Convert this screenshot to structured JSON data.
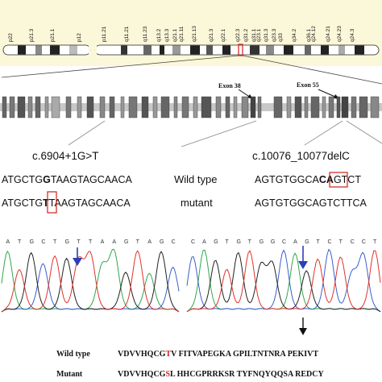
{
  "colors": {
    "ideogram_bg": "#fbf7d9",
    "highlight_box": "#d0201c",
    "arrow_blue": "#2a3fb8",
    "trace_green": "#2ea84a",
    "trace_red": "#e0312a",
    "trace_blue": "#3a5fd0",
    "trace_black": "#222222"
  },
  "ideogram": {
    "bands": [
      "p22",
      "p21.3",
      "p21.1",
      "p12",
      "p11.21",
      "q11.21",
      "q11.23",
      "q13.2",
      "q13.3",
      "q21.11",
      "q21.13",
      "q21.3",
      "q22.1",
      "q22.3",
      "q31.1",
      "q31.3",
      "q33",
      "q34.2",
      "q36.1"
    ],
    "band_labels": [
      "p22",
      "p21.3",
      "p21.1",
      "p12",
      "p11.21",
      "q11.21",
      "q11.23",
      "q13.2",
      "q13.3",
      "q21.11",
      "q21.13",
      "q21.3",
      "q22.1",
      "q22.3",
      "q31.1",
      "q31.3",
      "q33",
      "q34.2",
      "q36.1"
    ],
    "band_labels_x": [
      12,
      38,
      64,
      97,
      128,
      156,
      179,
      196,
      206,
      224,
      240,
      261,
      276,
      294,
      314,
      329,
      347,
      364,
      382
    ],
    "band_labels_extra": [
      "q21.1",
      "q31.2",
      "q23.1",
      "q23.3",
      "q24.12",
      "q24.21",
      "q24.23",
      "q24.3"
    ],
    "band_labels_extra_x": [
      216,
      304,
      320,
      339,
      388,
      406,
      420,
      436
    ]
  },
  "exon_map": {
    "exon_a": "Exon 38",
    "exon_b": "Exon 55"
  },
  "variant_left": {
    "name": "c.6904+1G>T",
    "wild_seq": [
      "ATGCTG",
      "G",
      "TAAGTAGCAACA"
    ],
    "mut_seq": [
      "ATGCTG",
      "T",
      "TAAGTAGCAACA"
    ]
  },
  "variant_right": {
    "name": "c.10076_10077delC",
    "wild_seq": [
      "AGTGTGGCA",
      "CA",
      "GTCT"
    ],
    "mut_seq": [
      "AGTGTGGCAGTCTTCA"
    ]
  },
  "middle_labels": {
    "wild": "Wild type",
    "mutant": "mutant"
  },
  "chromatogram_left": {
    "bases": [
      "A",
      "T",
      "G",
      "C",
      "T",
      "G",
      "T",
      "T",
      "A",
      "A",
      "G",
      "T",
      "A",
      "G",
      "C"
    ]
  },
  "chromatogram_right": {
    "bases": [
      "C",
      "A",
      "G",
      "T",
      "G",
      "T",
      "G",
      "G",
      "C",
      "A",
      "G",
      "T",
      "C",
      "T",
      "C",
      "C",
      "T"
    ]
  },
  "protein": {
    "wild_label": "Wild type",
    "mutant_label": "Mutant",
    "wild_seq": [
      "VDVVHQCG",
      "T",
      "V FITVAPEGKA GPILTNTNRA PEKIVT"
    ],
    "mut_seq": [
      "VDVVHQCG",
      "S",
      "L HHCGPRRKSR TYFNQYQQSA REDCY"
    ]
  }
}
